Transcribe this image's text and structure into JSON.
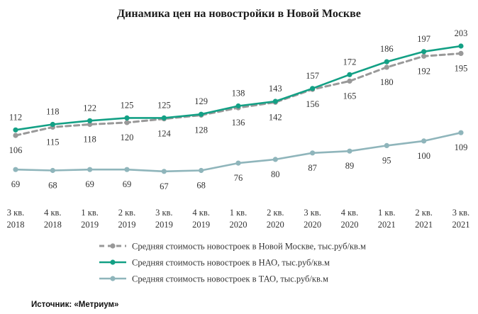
{
  "chart_data": {
    "type": "line",
    "title": "Динамика цен на новостройки в Новой Москве",
    "categories": [
      [
        "3 кв.",
        "2018"
      ],
      [
        "4 кв.",
        "2018"
      ],
      [
        "1 кв.",
        "2019"
      ],
      [
        "2 кв.",
        "2019"
      ],
      [
        "3 кв.",
        "2019"
      ],
      [
        "4 кв.",
        "2019"
      ],
      [
        "1 кв.",
        "2020"
      ],
      [
        "2 кв.",
        "2020"
      ],
      [
        "3 кв.",
        "2020"
      ],
      [
        "4 кв.",
        "2020"
      ],
      [
        "1 кв.",
        "2021"
      ],
      [
        "2 кв.",
        "2021"
      ],
      [
        "3 кв.",
        "2021"
      ]
    ],
    "series": [
      {
        "name": "Средняя стоимость  новостроек в Новой Москве, тыс.руб/кв.м",
        "values": [
          106,
          115,
          118,
          120,
          124,
          128,
          136,
          142,
          156,
          165,
          180,
          192,
          195
        ],
        "color": "#999999",
        "style": "dashed",
        "label_position": "below"
      },
      {
        "name": "Средняя стоимость  новостроек в НАО, тыс.руб/кв.м",
        "values": [
          112,
          118,
          122,
          125,
          125,
          129,
          138,
          143,
          157,
          172,
          186,
          197,
          203
        ],
        "color": "#13a085",
        "style": "solid",
        "label_position": "above"
      },
      {
        "name": "Средняя стоимость  новостроек в ТАО, тыс.руб/кв.м",
        "values": [
          69,
          68,
          69,
          69,
          67,
          68,
          76,
          80,
          87,
          89,
          95,
          100,
          109
        ],
        "color": "#8fb5bb",
        "style": "solid",
        "label_position": "below"
      }
    ],
    "grid": false,
    "legend_position": "bottom"
  },
  "source": "Источник: «Метриум»"
}
